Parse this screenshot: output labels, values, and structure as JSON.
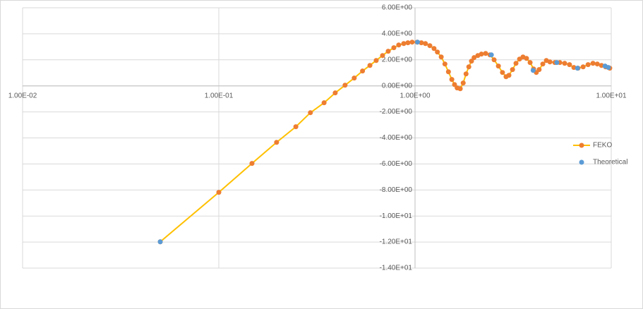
{
  "chart_data": {
    "type": "scatter",
    "xscale": "log",
    "grid": true,
    "legend": "right",
    "xlim": [
      0.01,
      10
    ],
    "ylim": [
      -14,
      6
    ],
    "xticks": [
      {
        "value": 0.01,
        "label": "1.00E-02"
      },
      {
        "value": 0.1,
        "label": "1.00E-01"
      },
      {
        "value": 1,
        "label": "1.00E+00"
      },
      {
        "value": 10,
        "label": "1.00E+01"
      }
    ],
    "yticks": [
      {
        "value": 6,
        "label": "6.00E+00"
      },
      {
        "value": 4,
        "label": "4.00E+00"
      },
      {
        "value": 2,
        "label": "2.00E+00"
      },
      {
        "value": 0,
        "label": "0.00E+00"
      },
      {
        "value": -2,
        "label": "-2.00E+00"
      },
      {
        "value": -4,
        "label": "-4.00E+00"
      },
      {
        "value": -6,
        "label": "-6.00E+00"
      },
      {
        "value": -8,
        "label": "-8.00E+00"
      },
      {
        "value": -10,
        "label": "-1.00E+01"
      },
      {
        "value": -12,
        "label": "-1.20E+01"
      },
      {
        "value": -14,
        "label": "-1.40E+01"
      }
    ],
    "series": [
      {
        "name": "FEKO",
        "color": "#ED7D31",
        "line_color": "#FFC000",
        "x": [
          0.0503,
          0.1,
          0.1476,
          0.197,
          0.247,
          0.293,
          0.344,
          0.392,
          0.44,
          0.49,
          0.54,
          0.589,
          0.634,
          0.683,
          0.73,
          0.78,
          0.826,
          0.876,
          0.92,
          0.967,
          1.025,
          1.077,
          1.13,
          1.19,
          1.25,
          1.3,
          1.36,
          1.42,
          1.48,
          1.54,
          1.59,
          1.64,
          1.7,
          1.76,
          1.82,
          1.88,
          1.94,
          2.0,
          2.09,
          2.18,
          2.29,
          2.41,
          2.53,
          2.66,
          2.79,
          2.91,
          3.01,
          3.14,
          3.27,
          3.41,
          3.55,
          3.7,
          3.86,
          4.02,
          4.15,
          4.29,
          4.48,
          4.67,
          4.87,
          5.16,
          5.47,
          5.79,
          6.13,
          6.45,
          6.77,
          7.19,
          7.62,
          8.07,
          8.49,
          8.92,
          9.36,
          9.83
        ],
        "values": [
          -11.98,
          -8.18,
          -5.96,
          -4.34,
          -3.14,
          -2.06,
          -1.3,
          -0.54,
          0.05,
          0.6,
          1.14,
          1.57,
          1.95,
          2.33,
          2.66,
          2.93,
          3.14,
          3.25,
          3.31,
          3.36,
          3.36,
          3.31,
          3.25,
          3.09,
          2.87,
          2.6,
          2.22,
          1.68,
          1.08,
          0.49,
          0.1,
          -0.16,
          -0.22,
          0.22,
          0.92,
          1.46,
          1.9,
          2.17,
          2.33,
          2.44,
          2.49,
          2.38,
          2.0,
          1.52,
          1.03,
          0.7,
          0.81,
          1.25,
          1.73,
          2.06,
          2.22,
          2.11,
          1.79,
          1.3,
          1.03,
          1.25,
          1.68,
          1.95,
          1.84,
          1.79,
          1.79,
          1.73,
          1.63,
          1.41,
          1.36,
          1.46,
          1.63,
          1.73,
          1.68,
          1.57,
          1.46,
          1.36
        ]
      },
      {
        "name": "Theoretical",
        "color": "#5B9BD5",
        "x": [
          0.0503,
          1.03,
          2.45,
          4.0,
          5.28,
          6.73,
          9.3,
          9.67
        ],
        "values": [
          -11.98,
          3.36,
          2.38,
          1.19,
          1.79,
          1.36,
          1.52,
          1.41
        ]
      }
    ]
  }
}
